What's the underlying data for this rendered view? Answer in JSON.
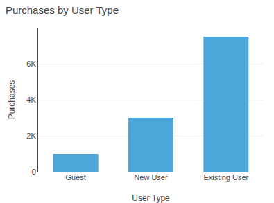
{
  "chart_data": {
    "type": "bar",
    "title": "Purchases by User Type",
    "xlabel": "User Type",
    "ylabel": "Purchases",
    "categories": [
      "Guest",
      "New User",
      "Existing User"
    ],
    "values": [
      1000,
      3000,
      7500
    ],
    "color": "#4da6d9",
    "ylim": [
      0,
      8000
    ],
    "yticks": [
      0,
      {
        "value": 2000,
        "label": "2K"
      },
      {
        "value": 4000,
        "label": "4K"
      },
      {
        "value": 6000,
        "label": "6K"
      }
    ],
    "grid": true
  }
}
